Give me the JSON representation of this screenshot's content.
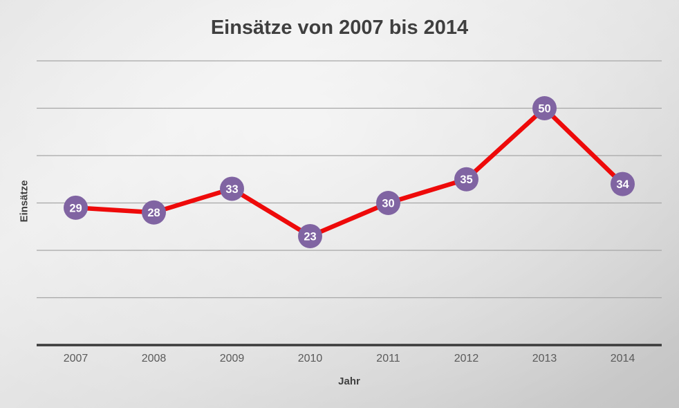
{
  "chart": {
    "title": "Einsätze von 2007 bis 2014",
    "ylabel": "Einsätze",
    "xlabel": "Jahr"
  },
  "chart_data": {
    "type": "line",
    "title": "Einsätze von 2007 bis 2014",
    "xlabel": "Jahr",
    "ylabel": "Einsätze",
    "categories": [
      "2007",
      "2008",
      "2009",
      "2010",
      "2011",
      "2012",
      "2013",
      "2014"
    ],
    "values": [
      29,
      28,
      33,
      23,
      30,
      35,
      50,
      34
    ],
    "ylim": [
      0,
      60
    ],
    "gridline_step": 10,
    "grid": true,
    "legend": "none",
    "data_labels": "inside-marker",
    "colors": {
      "line": "#ee0a0a",
      "marker": "#8064a2",
      "marker_label": "#ffffff",
      "gridline": "#a6a6a6",
      "axis_line": "#3a3a3a",
      "tick_label": "#5a5a5a",
      "title_text": "#3f3f3f"
    }
  }
}
